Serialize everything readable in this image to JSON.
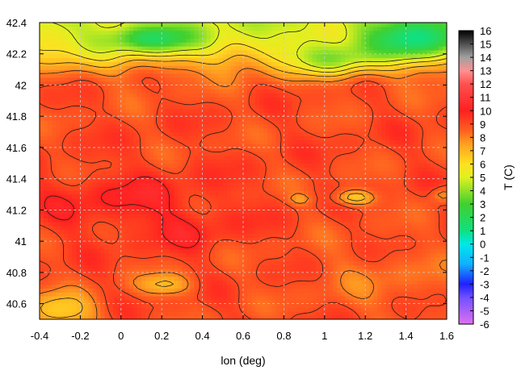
{
  "chart_data": {
    "type": "heatmap",
    "title": "",
    "xlabel": "lon (deg)",
    "ylabel": "",
    "colorbar_label": "T (C)",
    "xlim": [
      -0.4,
      1.6
    ],
    "ylim": [
      40.5,
      42.4
    ],
    "clim": [
      -6,
      16
    ],
    "xticks": [
      -0.4,
      -0.2,
      0,
      0.2,
      0.4,
      0.6,
      0.8,
      1,
      1.2,
      1.4,
      1.6
    ],
    "xtick_labels": [
      "-0.4",
      "-0.2",
      "0",
      "0.2",
      "0.4",
      "0.6",
      "0.8",
      "1",
      "1.2",
      "1.4",
      "1.6"
    ],
    "yticks": [
      40.6,
      40.8,
      41,
      41.2,
      41.4,
      41.6,
      41.8,
      42,
      42.2,
      42.4
    ],
    "ytick_labels": [
      "40.6",
      "40.8",
      "41",
      "41.2",
      "41.4",
      "41.6",
      "41.8",
      "42",
      "42.2",
      "42.4"
    ],
    "cticks": [
      -6,
      -5,
      -4,
      -3,
      -2,
      -1,
      0,
      1,
      2,
      3,
      4,
      5,
      6,
      7,
      8,
      9,
      10,
      11,
      12,
      13,
      14,
      15,
      16
    ],
    "ctick_labels": [
      "-6",
      "-5",
      "-4",
      "-3",
      "-2",
      "-1",
      "0",
      "1",
      "2",
      "3",
      "4",
      "5",
      "6",
      "7",
      "8",
      "9",
      "10",
      "11",
      "12",
      "13",
      "14",
      "15",
      "16"
    ],
    "colorscale": [
      [
        -6,
        "#e070f0"
      ],
      [
        -4,
        "#7050ff"
      ],
      [
        -3,
        "#2020ff"
      ],
      [
        -1.5,
        "#10b0ff"
      ],
      [
        0,
        "#00e8e8"
      ],
      [
        1,
        "#10e080"
      ],
      [
        3,
        "#40d030"
      ],
      [
        5,
        "#e0f020"
      ],
      [
        6,
        "#ffe020"
      ],
      [
        7.5,
        "#ffa020"
      ],
      [
        8.5,
        "#ff6020"
      ],
      [
        10,
        "#ff2020"
      ],
      [
        12,
        "#ff5050"
      ],
      [
        13,
        "#ff9090"
      ],
      [
        14,
        "#a0a0a0"
      ],
      [
        16,
        "#000000"
      ]
    ],
    "grid": true,
    "contours": true,
    "annotations": []
  }
}
